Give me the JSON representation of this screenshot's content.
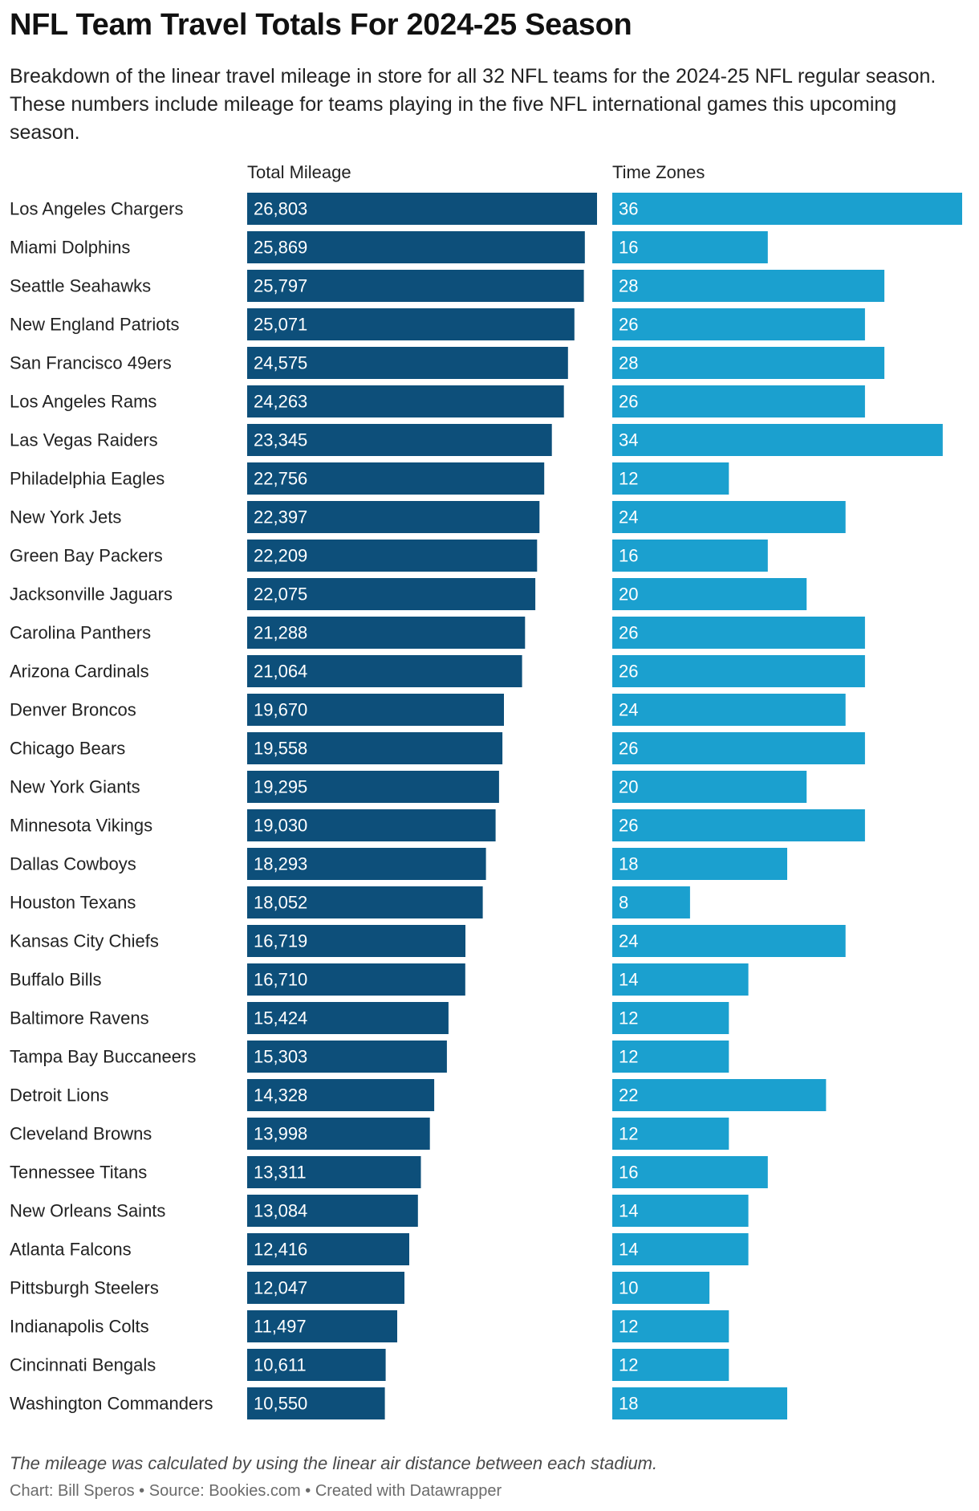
{
  "title": "NFL Team Travel Totals For 2024-25 Season",
  "subtitle": "Breakdown of the linear travel mileage in store for all 32 NFL teams for the 2024-25 NFL regular season. These numbers include mileage for teams playing in the five NFL international games this upcoming season.",
  "note": "The mileage was calculated by using the linear air distance between each stadium.",
  "footer": "Chart: Bill Speros • Source: Bookies.com • Created with Datawrapper",
  "colors": {
    "mileage": "#0d4f7a",
    "timezones": "#1ba0cf"
  },
  "chart_data": {
    "type": "bar",
    "orientation": "horizontal",
    "categories": [
      "Los Angeles Chargers",
      "Miami Dolphins",
      "Seattle Seahawks",
      "New England Patriots",
      "San Francisco 49ers",
      "Los Angeles Rams",
      "Las Vegas Raiders",
      "Philadelphia Eagles",
      "New York Jets",
      "Green Bay Packers",
      "Jacksonville Jaguars",
      "Carolina Panthers",
      "Arizona Cardinals",
      "Denver Broncos",
      "Chicago Bears",
      "New York Giants",
      "Minnesota Vikings",
      "Dallas Cowboys",
      "Houston Texans",
      "Kansas City Chiefs",
      "Buffalo Bills",
      "Baltimore Ravens",
      "Tampa Bay Buccaneers",
      "Detroit Lions",
      "Cleveland Browns",
      "Tennessee Titans",
      "New Orleans Saints",
      "Atlanta Falcons",
      "Pittsburgh Steelers",
      "Indianapolis Colts",
      "Cincinnati Bengals",
      "Washington Commanders"
    ],
    "series": [
      {
        "name": "Total Mileage",
        "values": [
          26803,
          25869,
          25797,
          25071,
          24575,
          24263,
          23345,
          22756,
          22397,
          22209,
          22075,
          21288,
          21064,
          19670,
          19558,
          19295,
          19030,
          18293,
          18052,
          16719,
          16710,
          15424,
          15303,
          14328,
          13998,
          13311,
          13084,
          12416,
          12047,
          11497,
          10611,
          10550
        ],
        "labels": [
          "26,803",
          "25,869",
          "25,797",
          "25,071",
          "24,575",
          "24,263",
          "23,345",
          "22,756",
          "22,397",
          "22,209",
          "22,075",
          "21,288",
          "21,064",
          "19,670",
          "19,558",
          "19,295",
          "19,030",
          "18,293",
          "18,052",
          "16,719",
          "16,710",
          "15,424",
          "15,303",
          "14,328",
          "13,998",
          "13,311",
          "13,084",
          "12,416",
          "12,047",
          "11,497",
          "10,611",
          "10,550"
        ],
        "max": 26803
      },
      {
        "name": "Time Zones",
        "values": [
          36,
          16,
          28,
          26,
          28,
          26,
          34,
          12,
          24,
          16,
          20,
          26,
          26,
          24,
          26,
          20,
          26,
          18,
          8,
          24,
          14,
          12,
          12,
          22,
          12,
          16,
          14,
          14,
          10,
          12,
          12,
          18
        ],
        "labels": [
          "36",
          "16",
          "28",
          "26",
          "28",
          "26",
          "34",
          "12",
          "24",
          "16",
          "20",
          "26",
          "26",
          "24",
          "26",
          "20",
          "26",
          "18",
          "8",
          "24",
          "14",
          "12",
          "12",
          "22",
          "12",
          "16",
          "14",
          "14",
          "10",
          "12",
          "12",
          "18"
        ],
        "max": 36
      }
    ]
  }
}
